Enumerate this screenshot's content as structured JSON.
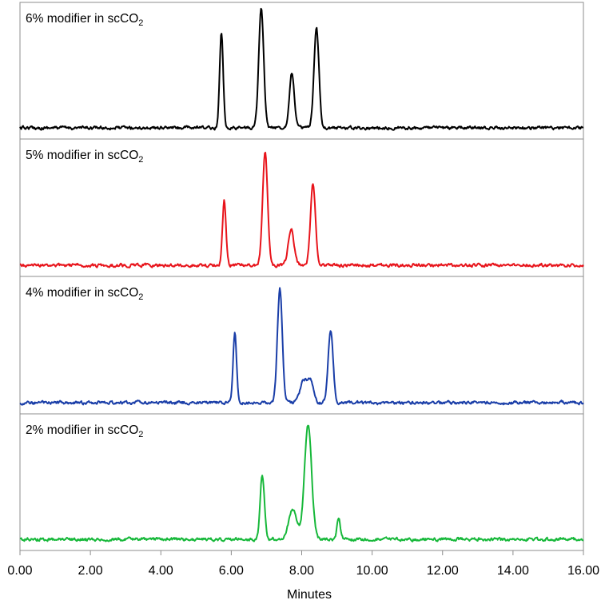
{
  "chart_data": {
    "type": "line",
    "xlabel": "Minutes",
    "xlim": [
      0,
      16
    ],
    "x_ticks": [
      "0.00",
      "2.00",
      "4.00",
      "6.00",
      "8.00",
      "10.00",
      "12.00",
      "14.00",
      "16.00"
    ],
    "grid": false,
    "legend": "none",
    "panels": [
      {
        "label": "6% modifier in scCO",
        "label_sub": "2",
        "color": "#000000",
        "peaks": [
          {
            "rt": 5.72,
            "height": 0.8,
            "width": 0.05
          },
          {
            "rt": 6.85,
            "height": 1.0,
            "width": 0.07
          },
          {
            "rt": 7.72,
            "height": 0.46,
            "width": 0.07
          },
          {
            "rt": 8.42,
            "height": 0.83,
            "width": 0.07
          }
        ]
      },
      {
        "label": "5% modifier in scCO",
        "label_sub": "2",
        "color": "#e8141b",
        "peaks": [
          {
            "rt": 5.8,
            "height": 0.54,
            "width": 0.05
          },
          {
            "rt": 6.96,
            "height": 0.95,
            "width": 0.07
          },
          {
            "rt": 7.7,
            "height": 0.3,
            "width": 0.08
          },
          {
            "rt": 8.32,
            "height": 0.68,
            "width": 0.07
          }
        ]
      },
      {
        "label": "4% modifier in scCO",
        "label_sub": "2",
        "color": "#1a3ea8",
        "peaks": [
          {
            "rt": 6.1,
            "height": 0.58,
            "width": 0.05
          },
          {
            "rt": 7.38,
            "height": 0.95,
            "width": 0.07
          },
          {
            "rt": 8.05,
            "height": 0.18,
            "width": 0.1
          },
          {
            "rt": 8.25,
            "height": 0.18,
            "width": 0.08
          },
          {
            "rt": 8.82,
            "height": 0.6,
            "width": 0.07
          }
        ]
      },
      {
        "label": "2% modifier in scCO",
        "label_sub": "2",
        "color": "#17b83a",
        "peaks": [
          {
            "rt": 6.88,
            "height": 0.55,
            "width": 0.06
          },
          {
            "rt": 7.75,
            "height": 0.25,
            "width": 0.12
          },
          {
            "rt": 8.18,
            "height": 0.96,
            "width": 0.1
          },
          {
            "rt": 9.05,
            "height": 0.17,
            "width": 0.05
          }
        ]
      }
    ]
  }
}
